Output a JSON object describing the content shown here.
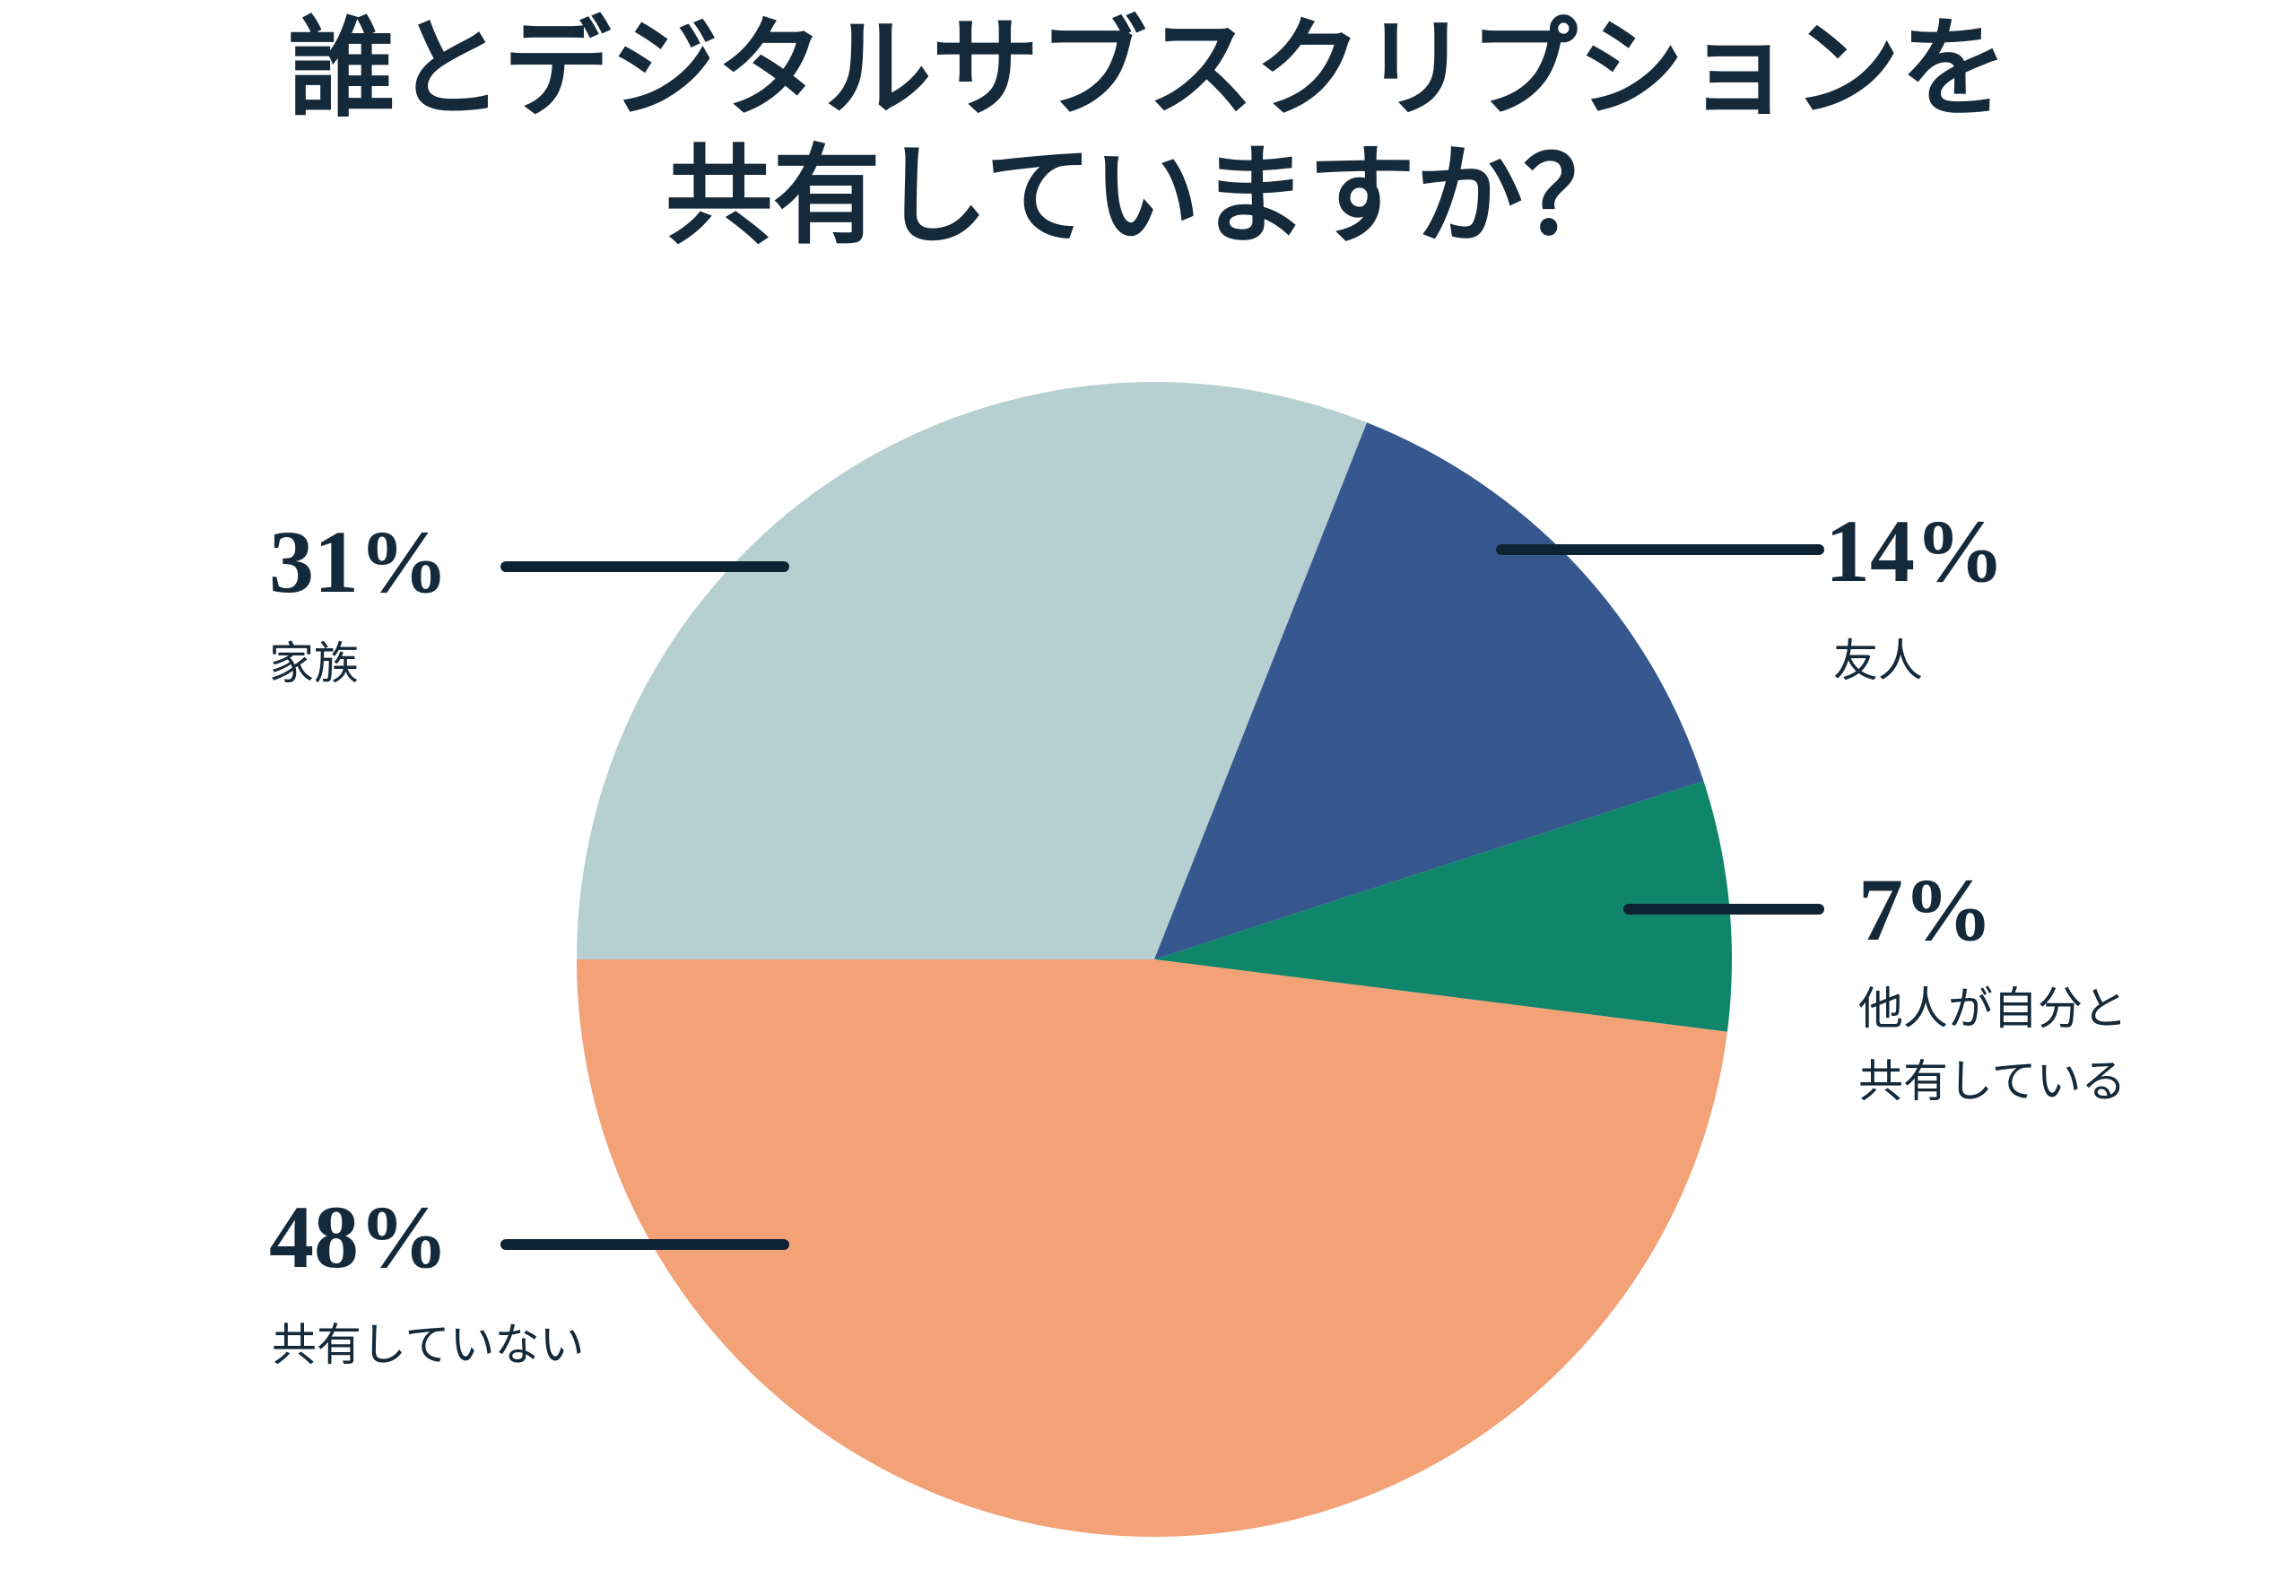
{
  "title": {
    "text": "誰とデジタルサブスクリプションを\n共有していますか？"
  },
  "colors": {
    "background": "#FFFFFF",
    "text": "#14293A",
    "leader_line": "#0D2233",
    "family": "#B6D0D1",
    "friends": "#36588F",
    "shared_by_others": "#0F8569",
    "not_sharing": "#F3A176"
  },
  "chart_data": {
    "type": "pie",
    "title": "誰とデジタルサブスクリプションを共有していますか？",
    "start_angle_deg_clockwise_from_top": 270,
    "direction": "clockwise",
    "legend": "none",
    "labels": "external-callouts",
    "slices": [
      {
        "id": "family",
        "label": "家族",
        "value_pct": 31,
        "color": "#B6D0D1"
      },
      {
        "id": "friends",
        "label": "友人",
        "value_pct": 14,
        "color": "#36588F"
      },
      {
        "id": "shared-by-others",
        "label": "他人が自分と共有している",
        "value_pct": 7,
        "color": "#0F8569"
      },
      {
        "id": "not-sharing",
        "label": "共有していない",
        "value_pct": 48,
        "color": "#F3A176"
      }
    ]
  },
  "callouts": {
    "family": {
      "pct": "31%",
      "label": "家族"
    },
    "friends": {
      "pct": "14%",
      "label": "友人"
    },
    "shared_by_others": {
      "pct": "7%",
      "label": "他人が自分と\n共有している"
    },
    "not_sharing": {
      "pct": "48%",
      "label": "共有していない"
    }
  }
}
